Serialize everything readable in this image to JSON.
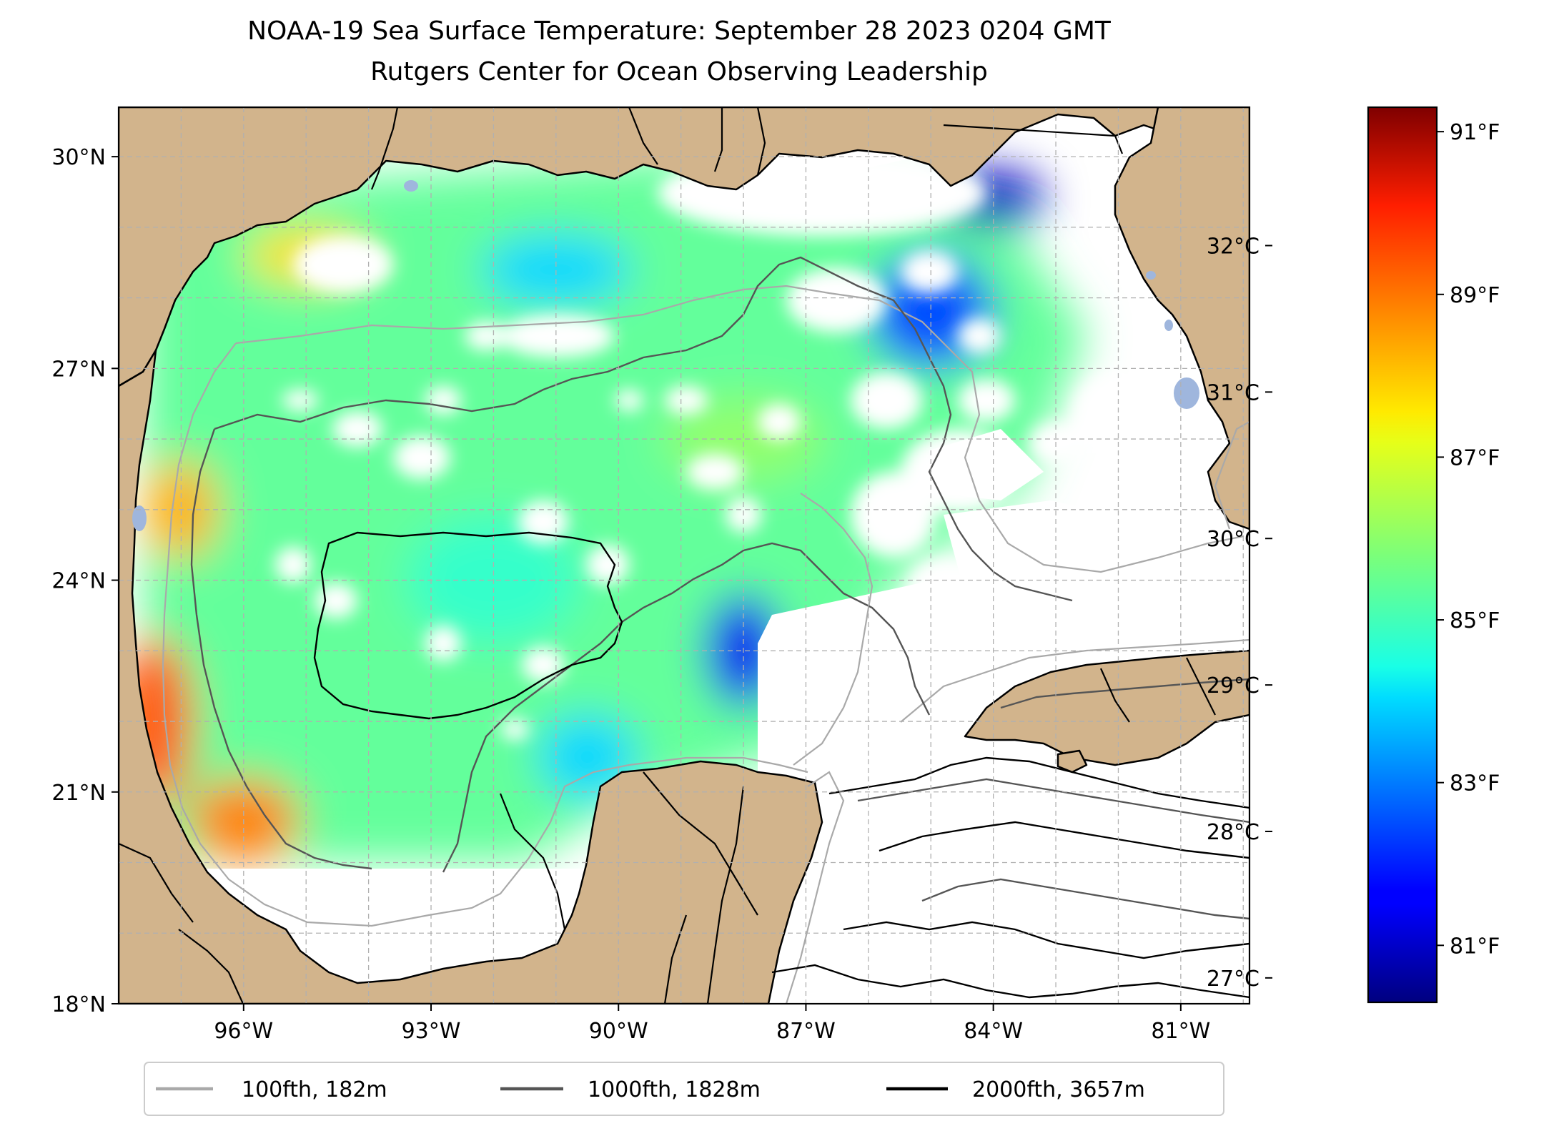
{
  "title": {
    "line1": "NOAA-19 Sea Surface Temperature: September 28 2023 0204 GMT",
    "line2": "Rutgers Center for Ocean Observing Leadership"
  },
  "map": {
    "extent": {
      "lon_min": -98.0,
      "lon_max": -79.9,
      "lat_min": 18.0,
      "lat_max": 30.7
    },
    "lon_ticks": [
      {
        "lon": -96,
        "label": "96°W"
      },
      {
        "lon": -93,
        "label": "93°W"
      },
      {
        "lon": -90,
        "label": "90°W"
      },
      {
        "lon": -87,
        "label": "87°W"
      },
      {
        "lon": -84,
        "label": "84°W"
      },
      {
        "lon": -81,
        "label": "81°W"
      }
    ],
    "lat_ticks": [
      {
        "lat": 30,
        "label": "30°N"
      },
      {
        "lat": 27,
        "label": "27°N"
      },
      {
        "lat": 24,
        "label": "24°N"
      },
      {
        "lat": 21,
        "label": "21°N"
      },
      {
        "lat": 18,
        "label": "18°N"
      }
    ],
    "gridlines": true,
    "colors": {
      "land": "#d2b48c",
      "inland_water": "#9fb6dd",
      "ocean_no_data": "#ffffff",
      "grid": "#b0b0b0"
    }
  },
  "sst_field": {
    "variable": "Sea Surface Temperature",
    "units": "°F",
    "colormap": "jet",
    "vmin_f": 80.3,
    "vmax_f": 91.3,
    "regions": [
      {
        "area": "western Gulf near Mexican coast (22°N, 97.5°W)",
        "approx_f": 89.0
      },
      {
        "area": "southwestern Gulf (20.5°N, 96°W)",
        "approx_f": 88.5
      },
      {
        "area": "western Gulf (25°N, 97°W)",
        "approx_f": 88.0
      },
      {
        "area": "Texas shelf (28.5°N, 95°W)",
        "approx_f": 87.5
      },
      {
        "area": "central Gulf (26°N, 88°W)",
        "approx_f": 86.0
      },
      {
        "area": "central Gulf (24°N, 92°W)",
        "approx_f": 85.0
      },
      {
        "area": "Louisiana shelf (28.5°N, 91°W)",
        "approx_f": 84.0
      },
      {
        "area": "Bay of Campeche east (21.5°N, 90.5°W)",
        "approx_f": 84.0
      },
      {
        "area": "northeastern Gulf (28°N, 85°W)",
        "approx_f": 82.5
      },
      {
        "area": "Florida Big Bend (29.5°N, 84°W)",
        "approx_f": 81.0
      },
      {
        "area": "Yucatan Channel approach (23°N, 88°W)",
        "approx_f": 81.5
      }
    ]
  },
  "colorbar": {
    "f_ticks": [
      {
        "value": 91,
        "label": "91°F"
      },
      {
        "value": 89,
        "label": "89°F"
      },
      {
        "value": 87,
        "label": "87°F"
      },
      {
        "value": 85,
        "label": "85°F"
      },
      {
        "value": 83,
        "label": "83°F"
      },
      {
        "value": 81,
        "label": "81°F"
      }
    ],
    "c_ticks": [
      {
        "value": 32,
        "label": "32°C"
      },
      {
        "value": 31,
        "label": "31°C"
      },
      {
        "value": 30,
        "label": "30°C"
      },
      {
        "value": 29,
        "label": "29°C"
      },
      {
        "value": 28,
        "label": "28°C"
      },
      {
        "value": 27,
        "label": "27°C"
      }
    ]
  },
  "legend": {
    "placement": "bottom-center",
    "items": [
      {
        "label": "100fth, 182m",
        "color": "#a9a9a9"
      },
      {
        "label": "1000fth, 1828m",
        "color": "#555555"
      },
      {
        "label": "2000fth, 3657m",
        "color": "#000000"
      }
    ]
  }
}
